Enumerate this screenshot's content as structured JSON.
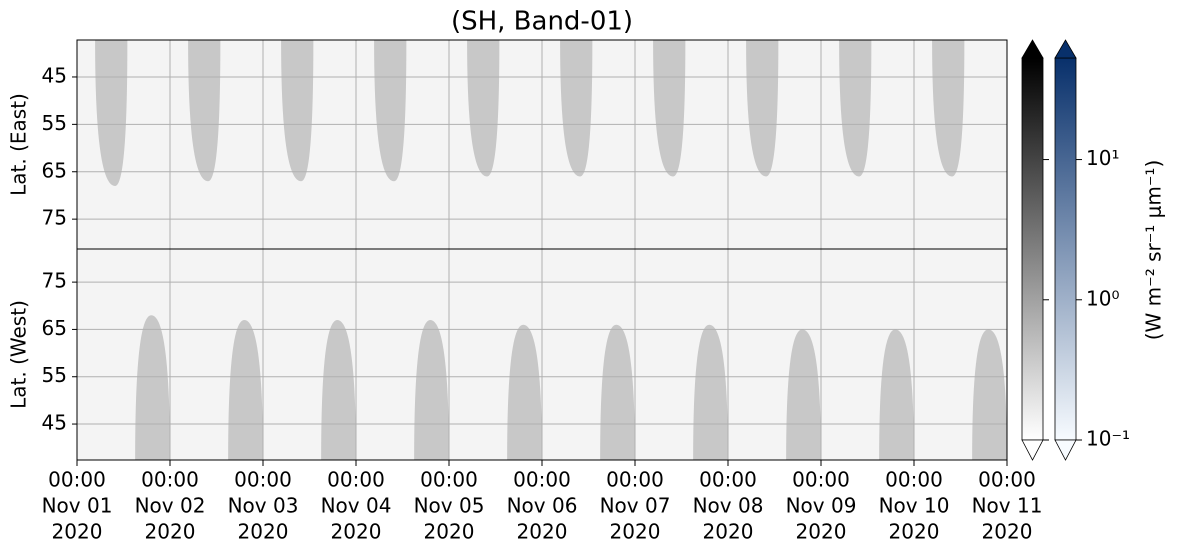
{
  "chart_data": {
    "type": "heatmap",
    "title": "(SH, Band-01)",
    "xlim": [
      "2020-11-01T00:00",
      "2020-11-11T00:00"
    ],
    "xticks": [
      {
        "value": "2020-11-01T00:00",
        "label": [
          "00:00",
          "Nov 01",
          "2020"
        ]
      },
      {
        "value": "2020-11-02T00:00",
        "label": [
          "00:00",
          "Nov 02",
          "2020"
        ]
      },
      {
        "value": "2020-11-03T00:00",
        "label": [
          "00:00",
          "Nov 03",
          "2020"
        ]
      },
      {
        "value": "2020-11-04T00:00",
        "label": [
          "00:00",
          "Nov 04",
          "2020"
        ]
      },
      {
        "value": "2020-11-05T00:00",
        "label": [
          "00:00",
          "Nov 05",
          "2020"
        ]
      },
      {
        "value": "2020-11-06T00:00",
        "label": [
          "00:00",
          "Nov 06",
          "2020"
        ]
      },
      {
        "value": "2020-11-07T00:00",
        "label": [
          "00:00",
          "Nov 07",
          "2020"
        ]
      },
      {
        "value": "2020-11-08T00:00",
        "label": [
          "00:00",
          "Nov 08",
          "2020"
        ]
      },
      {
        "value": "2020-11-09T00:00",
        "label": [
          "00:00",
          "Nov 09",
          "2020"
        ]
      },
      {
        "value": "2020-11-10T00:00",
        "label": [
          "00:00",
          "Nov 10",
          "2020"
        ]
      },
      {
        "value": "2020-11-11T00:00",
        "label": [
          "00:00",
          "Nov 11",
          "2020"
        ]
      }
    ],
    "grid": true,
    "panels": [
      {
        "ylabel": "Lat. (East)",
        "ylim": [
          37.2,
          81.3
        ],
        "inverted": true,
        "yticks": [
          45,
          55,
          65,
          75
        ],
        "regions": [
          [
            "2020-11-01T04:40",
            "2020-11-01T09:50",
            "2020-11-01T13:00",
            68
          ],
          [
            "2020-11-02T04:40",
            "2020-11-02T09:50",
            "2020-11-02T13:00",
            67
          ],
          [
            "2020-11-03T04:40",
            "2020-11-03T09:50",
            "2020-11-03T13:00",
            67
          ],
          [
            "2020-11-04T04:40",
            "2020-11-04T09:50",
            "2020-11-04T13:00",
            67
          ],
          [
            "2020-11-05T04:40",
            "2020-11-05T09:50",
            "2020-11-05T13:00",
            66
          ],
          [
            "2020-11-06T04:40",
            "2020-11-06T09:50",
            "2020-11-06T13:00",
            66
          ],
          [
            "2020-11-07T04:40",
            "2020-11-07T09:50",
            "2020-11-07T13:00",
            66
          ],
          [
            "2020-11-08T04:40",
            "2020-11-08T09:50",
            "2020-11-08T13:00",
            66
          ],
          [
            "2020-11-09T04:40",
            "2020-11-09T09:50",
            "2020-11-09T13:00",
            66
          ],
          [
            "2020-11-10T04:40",
            "2020-11-10T09:50",
            "2020-11-10T13:00",
            66
          ]
        ]
      },
      {
        "ylabel": "Lat. (West)",
        "ylim": [
          37.4,
          82
        ],
        "inverted": false,
        "yticks": [
          45,
          55,
          65,
          75
        ],
        "regions": [
          [
            "2020-11-01T15:00",
            "2020-11-01T19:10",
            "2020-11-02T00:00",
            68
          ],
          [
            "2020-11-02T15:00",
            "2020-11-02T19:10",
            "2020-11-03T00:00",
            67
          ],
          [
            "2020-11-03T15:00",
            "2020-11-03T19:10",
            "2020-11-04T00:00",
            67
          ],
          [
            "2020-11-04T15:00",
            "2020-11-04T19:10",
            "2020-11-05T00:00",
            67
          ],
          [
            "2020-11-05T15:00",
            "2020-11-05T19:10",
            "2020-11-06T00:00",
            66
          ],
          [
            "2020-11-06T15:00",
            "2020-11-06T19:10",
            "2020-11-07T00:00",
            66
          ],
          [
            "2020-11-07T15:00",
            "2020-11-07T19:10",
            "2020-11-08T00:00",
            66
          ],
          [
            "2020-11-08T15:00",
            "2020-11-08T19:10",
            "2020-11-09T00:00",
            65
          ],
          [
            "2020-11-09T15:00",
            "2020-11-09T19:10",
            "2020-11-10T00:00",
            65
          ],
          [
            "2020-11-10T15:00",
            "2020-11-10T19:10",
            "2020-11-11T00:00",
            65
          ]
        ]
      }
    ],
    "colorbar": {
      "label": "(W m⁻² sr⁻¹ μm⁻¹)",
      "scale": "log",
      "lim": [
        0.1,
        53
      ],
      "ticks": [
        {
          "value": 0.1,
          "label": "10⁻¹"
        },
        {
          "value": 1,
          "label": "10⁰"
        },
        {
          "value": 10,
          "label": "10¹"
        }
      ],
      "colors": [
        [
          "#ffffff",
          "#000000"
        ],
        [
          "#f7fbff",
          "#08306b"
        ]
      ]
    }
  }
}
